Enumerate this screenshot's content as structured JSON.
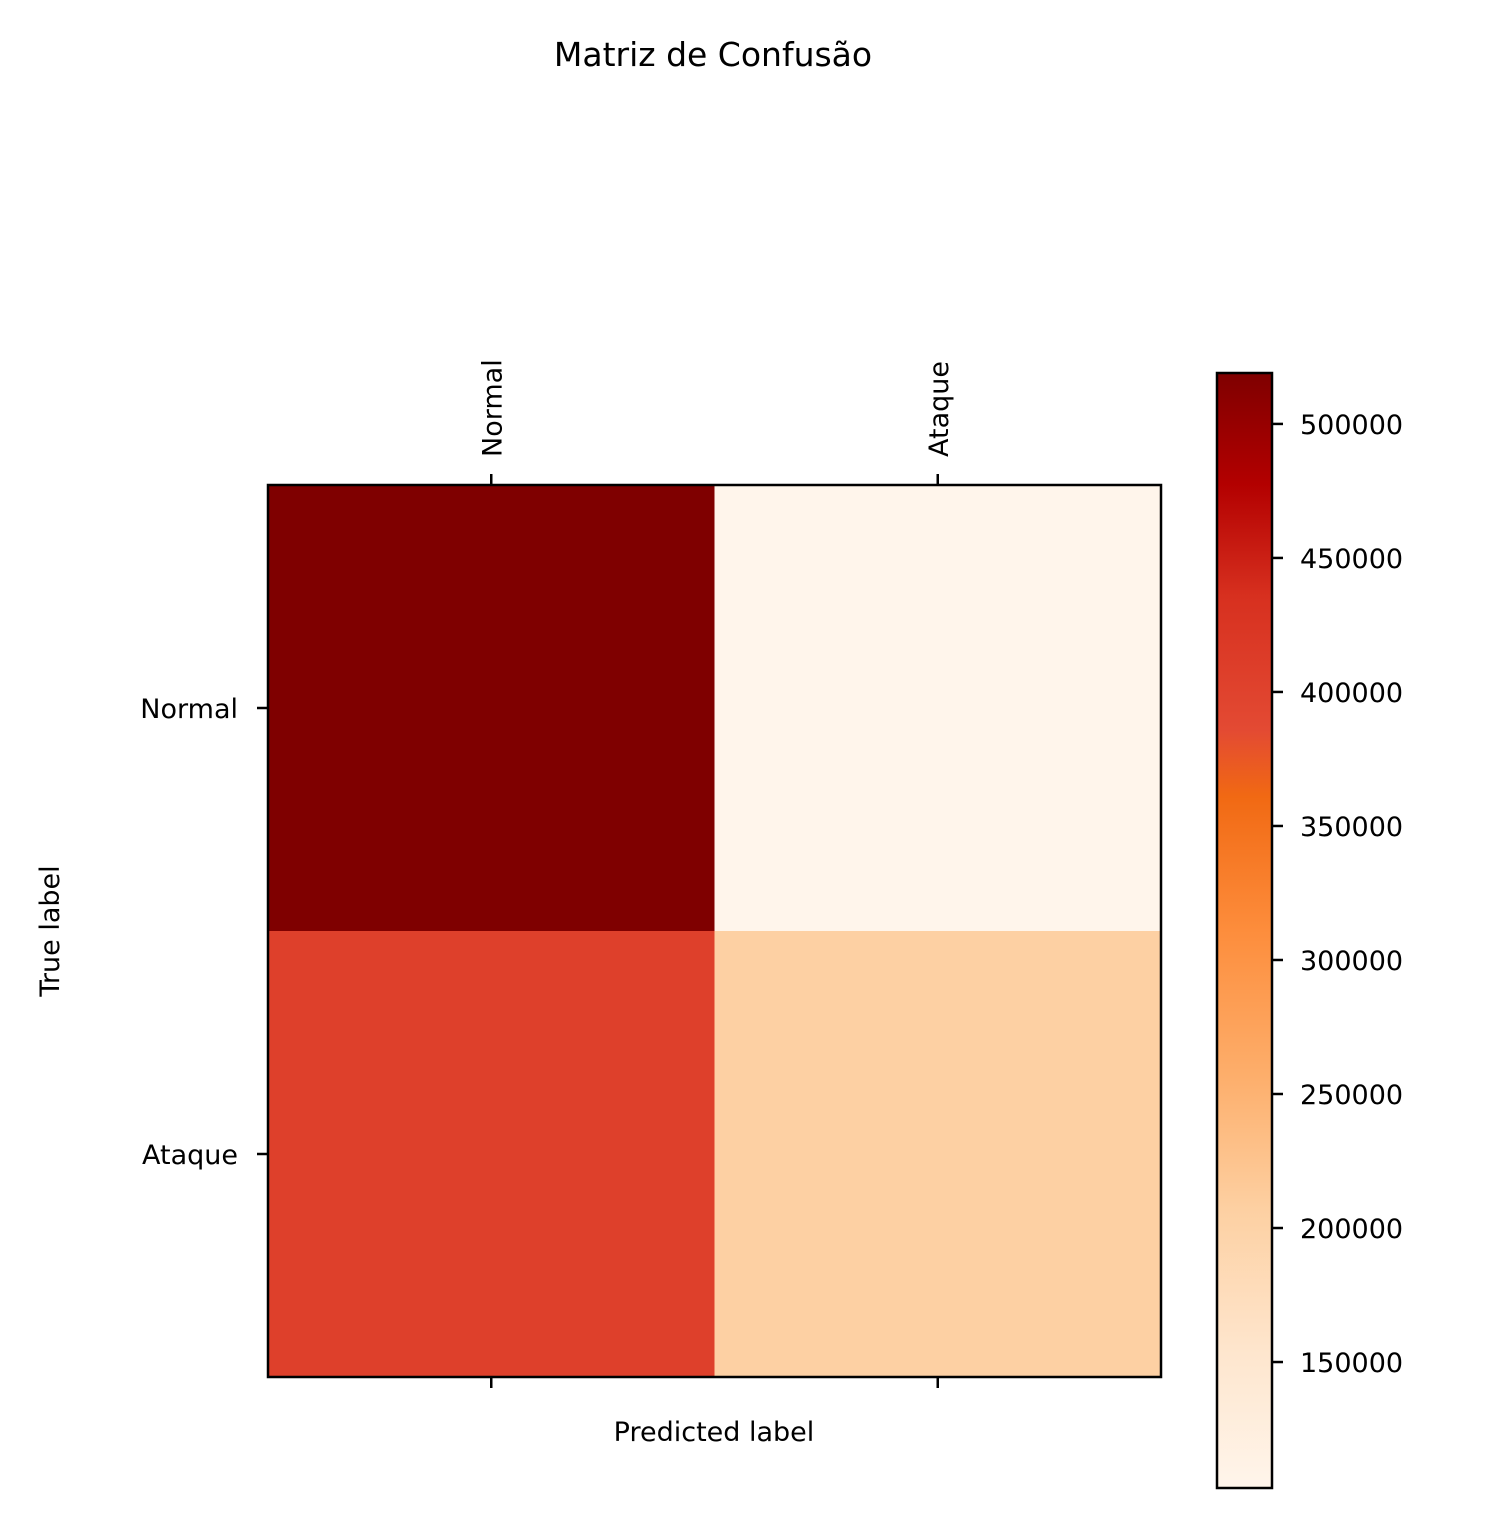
{
  "chart_data": {
    "type": "heatmap",
    "title": "Matriz de Confusão",
    "xlabel": "Predicted label",
    "ylabel": "True label",
    "x_categories": [
      "Normal",
      "Ataque"
    ],
    "y_categories": [
      "Normal",
      "Ataque"
    ],
    "values": [
      [
        519000,
        103000
      ],
      [
        405000,
        206000
      ]
    ],
    "colormap": "Oranges-to-dark-red",
    "colorbar": {
      "min": 103000,
      "max": 519000,
      "ticks": [
        150000,
        200000,
        250000,
        300000,
        350000,
        400000,
        450000,
        500000
      ],
      "tick_labels": [
        "150000",
        "200000",
        "250000",
        "300000",
        "350000",
        "400000",
        "450000",
        "500000"
      ]
    },
    "x_ticks_position": "top",
    "grid": false,
    "cell_colors": {
      "low": "#fff5eb",
      "high": "#7f0000"
    }
  }
}
